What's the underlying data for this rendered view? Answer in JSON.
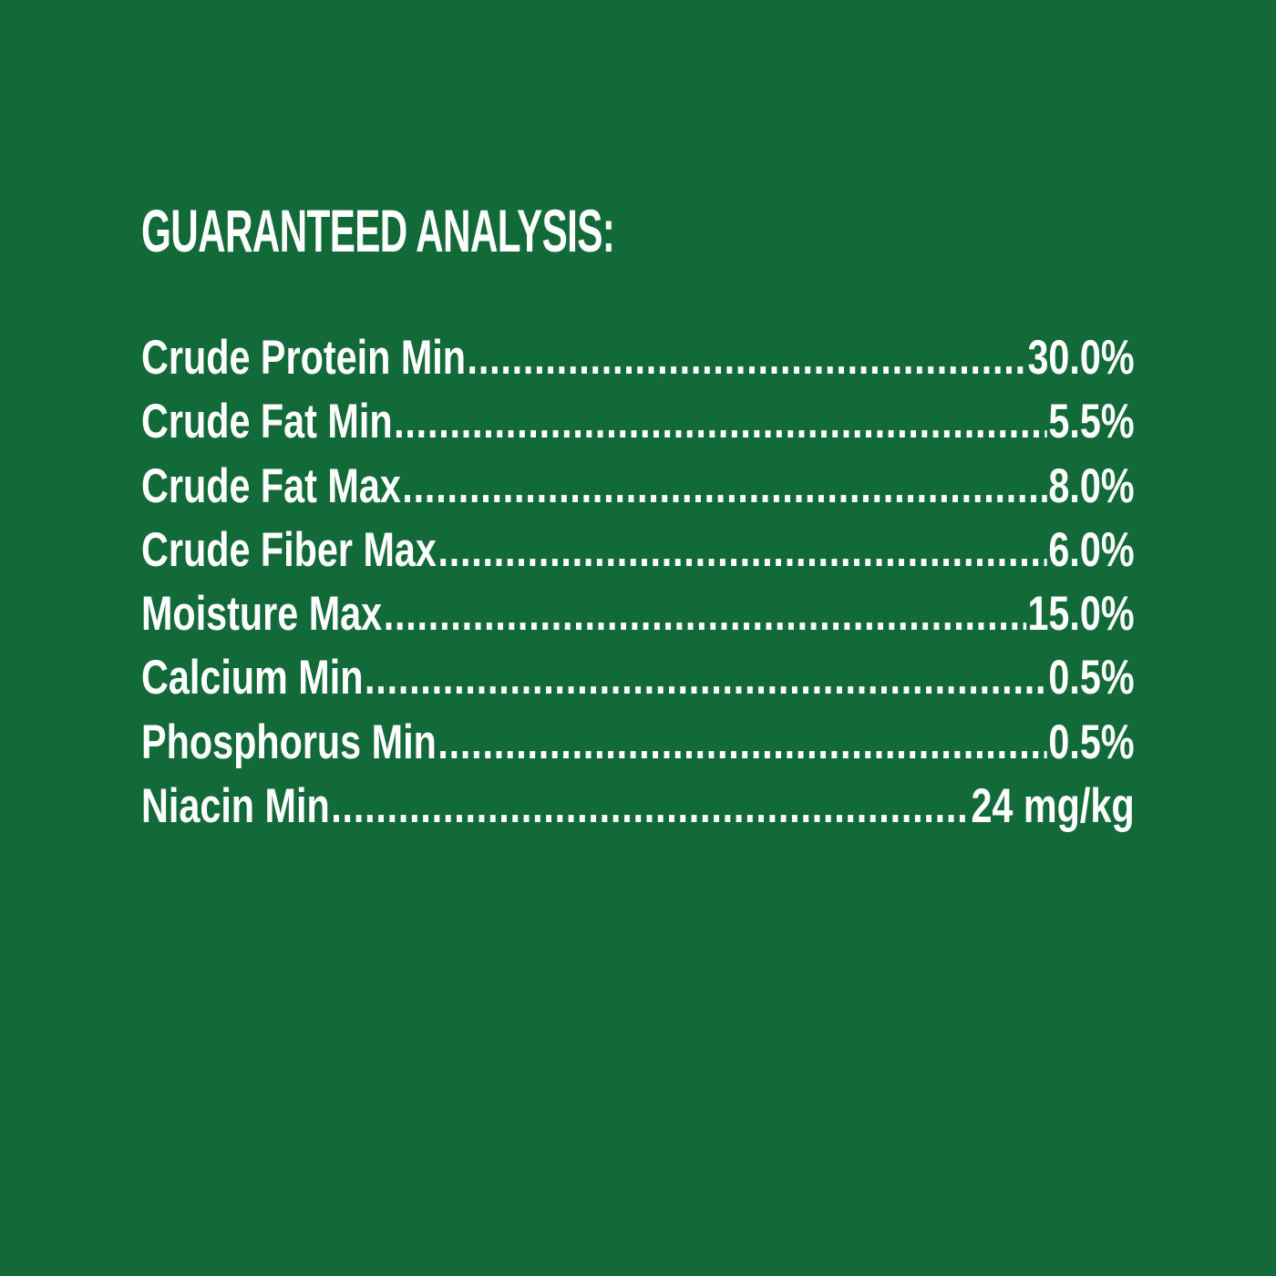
{
  "title": "GUARANTEED ANALYSIS:",
  "colors": {
    "background": "#116a37",
    "text": "#ffffff"
  },
  "rows": [
    {
      "label": "Crude Protein Min",
      "value": "30.0%"
    },
    {
      "label": "Crude Fat Min",
      "value": "5.5%"
    },
    {
      "label": "Crude Fat Max",
      "value": "8.0%"
    },
    {
      "label": "Crude Fiber Max",
      "value": "6.0%"
    },
    {
      "label": "Moisture Max",
      "value": "15.0%"
    },
    {
      "label": "Calcium Min",
      "value": "0.5%"
    },
    {
      "label": "Phosphorus Min",
      "value": "0.5%"
    },
    {
      "label": "Niacin Min",
      "value": "24 mg/kg"
    }
  ]
}
